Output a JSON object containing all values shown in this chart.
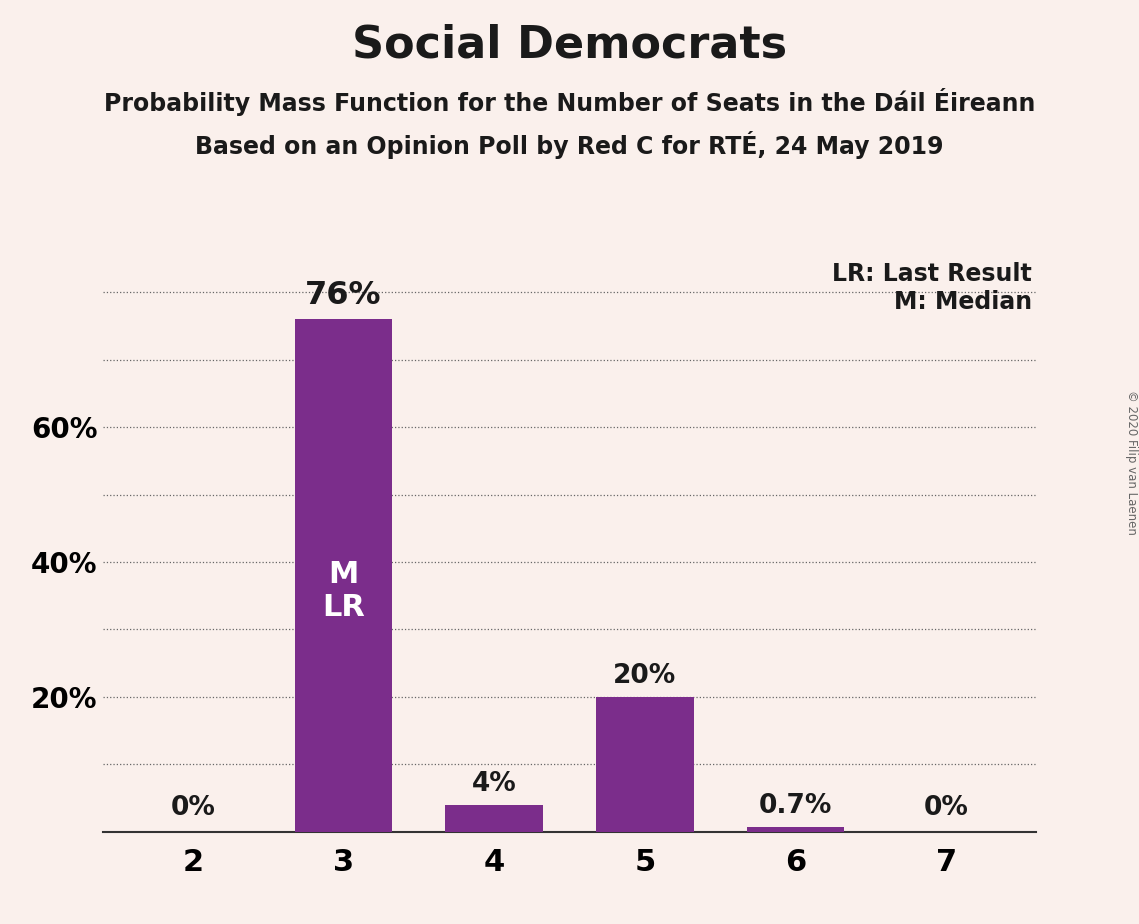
{
  "title": "Social Democrats",
  "subtitle1": "Probability Mass Function for the Number of Seats in the Dáil Éireann",
  "subtitle2": "Based on an Opinion Poll by Red C for RTÉ, 24 May 2019",
  "categories": [
    2,
    3,
    4,
    5,
    6,
    7
  ],
  "values": [
    0.0,
    76.0,
    4.0,
    20.0,
    0.7,
    0.0
  ],
  "bar_labels": [
    "0%",
    "76%",
    "4%",
    "20%",
    "0.7%",
    "0%"
  ],
  "bar_color": "#7B2D8B",
  "background_color": "#FAF0EC",
  "ylim": [
    0,
    85
  ],
  "grid_yticks": [
    10,
    20,
    30,
    40,
    50,
    60,
    70,
    80
  ],
  "title_fontsize": 32,
  "subtitle_fontsize": 17,
  "tick_fontsize": 20,
  "bar_label_fontsize": 19,
  "bar_label_large_fontsize": 23,
  "inner_text_fontsize": 22,
  "legend_fontsize": 17,
  "bar_text_label": "M\nLR",
  "bar_text_bar_index": 1,
  "legend_line1": "LR: Last Result",
  "legend_line2": "M: Median",
  "copyright_text": "© 2020 Filip van Laenen",
  "ytick_positions": [
    20,
    40,
    60
  ],
  "ytick_labels": [
    "20%",
    "40%",
    "60%"
  ]
}
